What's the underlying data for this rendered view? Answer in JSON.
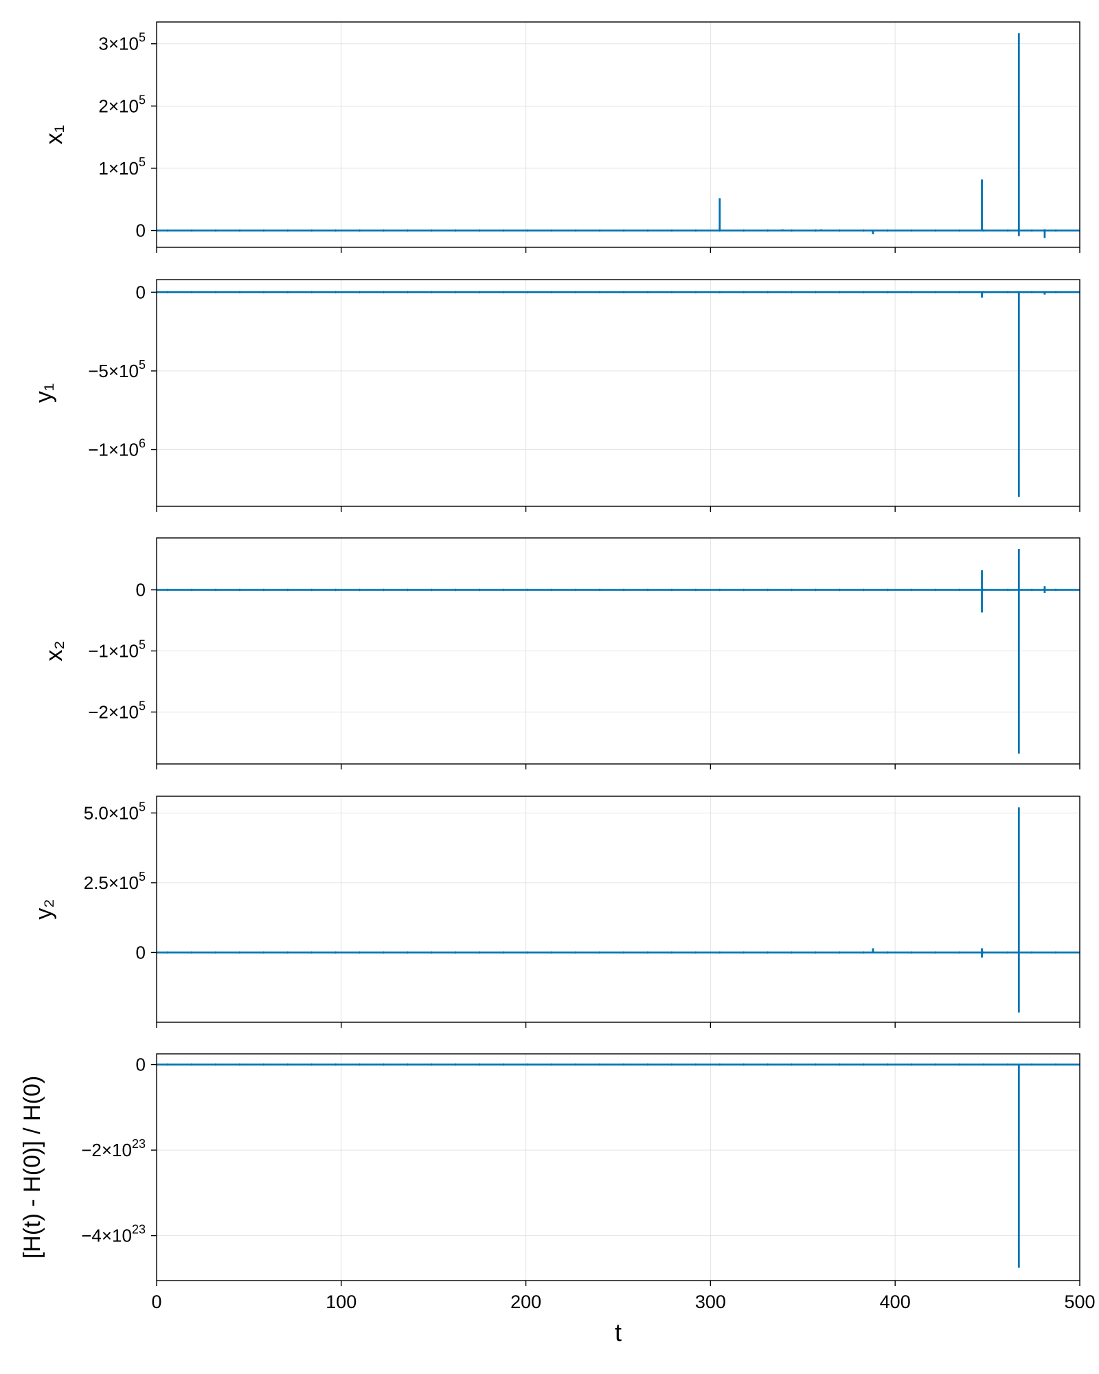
{
  "colors": {
    "line": "#0072b2",
    "grid": "#e3e3e3",
    "axis": "#000000",
    "background": "#ffffff"
  },
  "x_axis": {
    "label": "t",
    "ticks": [
      0,
      100,
      200,
      300,
      400,
      500
    ],
    "tick_labels": [
      "0",
      "100",
      "200",
      "300",
      "400",
      "500"
    ],
    "xlim": [
      0,
      500
    ]
  },
  "chart_data": [
    {
      "type": "line",
      "ylabel": "x₁",
      "ylim": [
        -27000,
        335000
      ],
      "yticks": [
        0,
        100000,
        200000,
        300000
      ],
      "ytick_labels": [
        {
          "mant": "0",
          "exp": ""
        },
        {
          "mant": "1×10",
          "exp": "5"
        },
        {
          "mant": "2×10",
          "exp": "5"
        },
        {
          "mant": "3×10",
          "exp": "5"
        }
      ],
      "baseline": 0,
      "spikes": [
        {
          "x": 305,
          "lo": 0,
          "hi": 52000
        },
        {
          "x": 339,
          "lo": 0,
          "hi": 2000
        },
        {
          "x": 360,
          "lo": 0,
          "hi": 2000
        },
        {
          "x": 388,
          "lo": -6000,
          "hi": 0
        },
        {
          "x": 447,
          "lo": 0,
          "hi": 82000
        },
        {
          "x": 467,
          "lo": -9000,
          "hi": 317000
        },
        {
          "x": 481,
          "lo": -12000,
          "hi": 2000
        }
      ],
      "grid": true
    },
    {
      "type": "line",
      "ylabel": "y₁",
      "ylim": [
        -1360000,
        80000
      ],
      "yticks": [
        0,
        -500000,
        -1000000
      ],
      "ytick_labels": [
        {
          "mant": "0",
          "exp": ""
        },
        {
          "mant": "−5×10",
          "exp": "5"
        },
        {
          "mant": "−1×10",
          "exp": "6"
        }
      ],
      "baseline": 0,
      "spikes": [
        {
          "x": 447,
          "lo": -35000,
          "hi": 0
        },
        {
          "x": 467,
          "lo": -1300000,
          "hi": 0
        },
        {
          "x": 481,
          "lo": -15000,
          "hi": 0
        }
      ],
      "grid": true
    },
    {
      "type": "line",
      "ylabel": "x₂",
      "ylim": [
        -285000,
        85000
      ],
      "yticks": [
        0,
        -100000,
        -200000
      ],
      "ytick_labels": [
        {
          "mant": "0",
          "exp": ""
        },
        {
          "mant": "−1×10",
          "exp": "5"
        },
        {
          "mant": "−2×10",
          "exp": "5"
        }
      ],
      "baseline": 0,
      "spikes": [
        {
          "x": 447,
          "lo": -37000,
          "hi": 32000
        },
        {
          "x": 467,
          "lo": -268000,
          "hi": 67000
        },
        {
          "x": 481,
          "lo": -5000,
          "hi": 6000
        }
      ],
      "grid": true
    },
    {
      "type": "line",
      "ylabel": "y₂",
      "ylim": [
        -250000,
        560000
      ],
      "yticks": [
        0,
        250000,
        500000
      ],
      "ytick_labels": [
        {
          "mant": "0",
          "exp": ""
        },
        {
          "mant": "2.5×10",
          "exp": "5"
        },
        {
          "mant": "5.0×10",
          "exp": "5"
        }
      ],
      "baseline": 0,
      "spikes": [
        {
          "x": 388,
          "lo": 0,
          "hi": 15000
        },
        {
          "x": 447,
          "lo": -18000,
          "hi": 15000
        },
        {
          "x": 467,
          "lo": -215000,
          "hi": 520000
        }
      ],
      "grid": true
    },
    {
      "type": "line",
      "ylabel": "[H(t) - H(0)] / H(0)",
      "ylim": [
        -5.05e+23,
        2.5e+22
      ],
      "yticks": [
        0,
        -2e+23,
        -4e+23
      ],
      "ytick_labels": [
        {
          "mant": "0",
          "exp": ""
        },
        {
          "mant": "−2×10",
          "exp": "23"
        },
        {
          "mant": "−4×10",
          "exp": "23"
        }
      ],
      "baseline": 0,
      "spikes": [
        {
          "x": 467,
          "lo": -4.75e+23,
          "hi": 0
        }
      ],
      "grid": true
    }
  ]
}
